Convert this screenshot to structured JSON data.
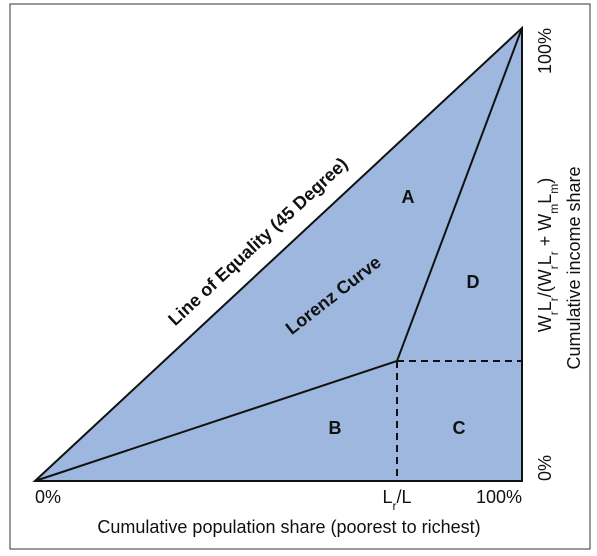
{
  "diagram": {
    "equality_line_label": "Line of Equality (45 Degree)",
    "lorenz_curve_label": "Lorenz Curve",
    "regions": [
      "A",
      "B",
      "C",
      "D"
    ],
    "x_axis": {
      "start": "0%",
      "mid": [
        "L",
        "r",
        "/L"
      ],
      "end": "100%",
      "title": "Cumulative population share (poorest to richest)"
    },
    "y_axis": {
      "start": "0%",
      "end": "100%",
      "mid": [
        "W",
        "r",
        "L",
        "r",
        "/(W",
        "r",
        "L",
        "r",
        " + W",
        "m",
        "L",
        "m",
        ")"
      ],
      "title": "Cumulative income share"
    }
  }
}
